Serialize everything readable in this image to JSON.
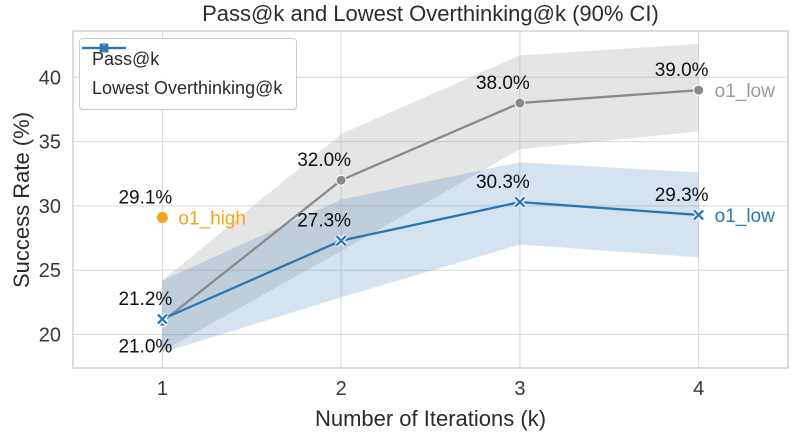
{
  "chart_data": {
    "type": "line",
    "title": "Pass@k and Lowest Overthinking@k (90% CI)",
    "xlabel": "Number of Iterations (k)",
    "ylabel": "Success Rate (%)",
    "x": [
      1,
      2,
      3,
      4
    ],
    "xticks": [
      1,
      2,
      3,
      4
    ],
    "yticks": [
      20,
      25,
      30,
      35,
      40
    ],
    "xlim": [
      0.5,
      4.5
    ],
    "ylim": [
      17.4,
      43.6
    ],
    "grid": true,
    "legend_position": "upper left",
    "ci_level": "90% CI",
    "colors": {
      "grid": "#d9d9d9",
      "spine": "#c9c9c9",
      "tick": "#383838",
      "annotation": "#111111",
      "background": "#ffffff"
    },
    "series": [
      {
        "name": "Pass@k",
        "marker": "circle",
        "color": "#8a8a8a",
        "band_color": "rgba(145,145,145,0.24)",
        "end_label": "o1_low",
        "end_label_color": "#9a9a9a",
        "values": [
          21.0,
          32.0,
          38.0,
          39.0
        ],
        "ci_low": [
          18.7,
          26.5,
          34.4,
          35.8
        ],
        "ci_high": [
          24.2,
          35.6,
          41.7,
          42.6
        ],
        "point_labels": [
          "21.0%",
          "32.0%",
          "38.0%",
          "39.0%"
        ],
        "label_side": [
          "below",
          "above",
          "above",
          "above"
        ]
      },
      {
        "name": "Lowest Overthinking@k",
        "marker": "x",
        "color": "#2878b5",
        "band_color": "rgba(66,129,190,0.22)",
        "end_label": "o1_low",
        "end_label_color": "#2878b5",
        "values": [
          21.2,
          27.3,
          30.3,
          29.3
        ],
        "ci_low": [
          18.6,
          22.9,
          27.0,
          26.0
        ],
        "ci_high": [
          24.2,
          30.5,
          33.4,
          32.6
        ],
        "point_labels": [
          "21.2%",
          "27.3%",
          "30.3%",
          "29.3%"
        ],
        "label_side": [
          "above",
          "above",
          "above",
          "above"
        ]
      }
    ],
    "extra_points": [
      {
        "name": "o1_high",
        "x": 1,
        "y": 29.1,
        "color": "#f5a31b",
        "value_label": "29.1%",
        "end_label": "o1_high"
      }
    ]
  }
}
